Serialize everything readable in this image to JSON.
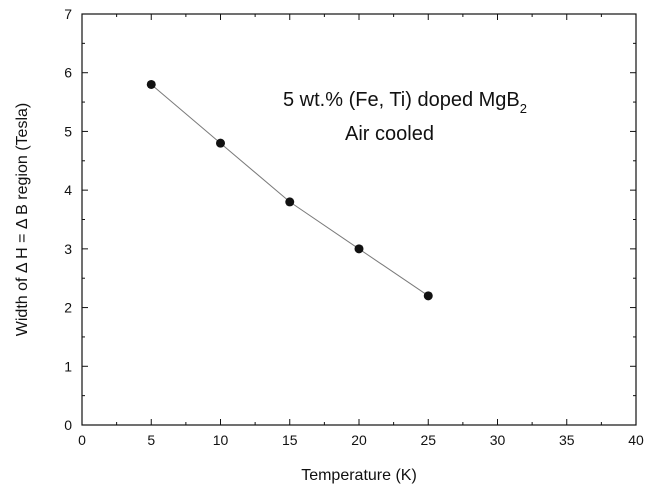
{
  "chart_data": {
    "type": "scatter",
    "title": "",
    "xlabel": "Temperature (K)",
    "ylabel": "Width of Δ  H = Δ  B region (Tesla)",
    "xlim": [
      0,
      40
    ],
    "ylim": [
      0,
      7
    ],
    "x_ticks": [
      "0",
      "5",
      "10",
      "15",
      "20",
      "25",
      "30",
      "35",
      "40"
    ],
    "y_ticks": [
      "0",
      "1",
      "2",
      "3",
      "4",
      "5",
      "6",
      "7"
    ],
    "grid": false,
    "legend": "none",
    "annotations": {
      "line1_main": "5 wt.% (Fe, Ti) doped MgB",
      "line1_sub": "2",
      "line2": "Air cooled"
    },
    "series": [
      {
        "x": [
          5,
          10,
          15,
          20,
          25
        ],
        "y": [
          5.8,
          4.8,
          3.8,
          3.0,
          2.2
        ],
        "marker": "filled-circle",
        "connected": true,
        "marker_color": "#111111",
        "line_color": "#7a7a7a"
      }
    ]
  }
}
